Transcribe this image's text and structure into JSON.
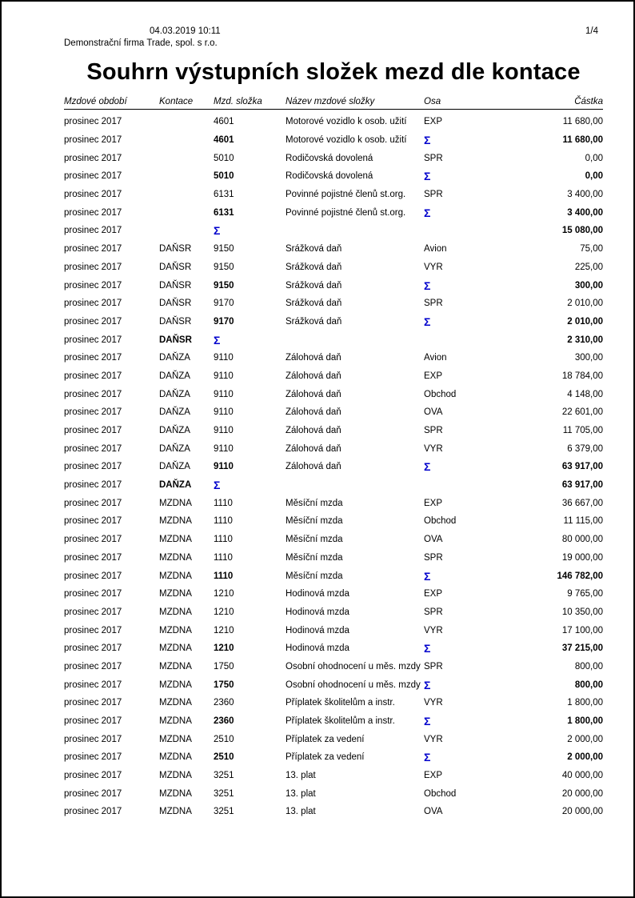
{
  "header": {
    "datetime": "04.03.2019 10:11",
    "company": "Demonstrační firma Trade, spol. s r.o.",
    "page_number": "1/4"
  },
  "title": "Souhrn výstupních složek mezd dle kontace",
  "colors": {
    "text": "#000000",
    "sigma": "#0000cc",
    "page_border": "#000000",
    "background": "#ffffff"
  },
  "table": {
    "sigma_symbol": "Σ",
    "columns": [
      "Mzdové období",
      "Kontace",
      "Mzd. složka",
      "Název mzdové složky",
      "Osa",
      "Částka"
    ],
    "rows": [
      {
        "period": "prosinec 2017",
        "kontace": "",
        "code": "4601",
        "name": "Motorové vozidlo k osob. užití",
        "osa": "EXP",
        "amount": "11 680,00",
        "bold": []
      },
      {
        "period": "prosinec 2017",
        "kontace": "",
        "code": "4601",
        "name": "Motorové vozidlo k osob. užití",
        "osa": "Σ",
        "amount": "11 680,00",
        "bold": [
          "code",
          "amount"
        ]
      },
      {
        "period": "prosinec 2017",
        "kontace": "",
        "code": "5010",
        "name": "Rodičovská dovolená",
        "osa": "SPR",
        "amount": "0,00",
        "bold": []
      },
      {
        "period": "prosinec 2017",
        "kontace": "",
        "code": "5010",
        "name": "Rodičovská dovolená",
        "osa": "Σ",
        "amount": "0,00",
        "bold": [
          "code",
          "amount"
        ]
      },
      {
        "period": "prosinec 2017",
        "kontace": "",
        "code": "6131",
        "name": "Povinné pojistné členů st.org.",
        "osa": "SPR",
        "amount": "3 400,00",
        "bold": []
      },
      {
        "period": "prosinec 2017",
        "kontace": "",
        "code": "6131",
        "name": "Povinné pojistné členů st.org.",
        "osa": "Σ",
        "amount": "3 400,00",
        "bold": [
          "code",
          "amount"
        ]
      },
      {
        "period": "prosinec 2017",
        "kontace": "",
        "code": "Σ",
        "name": "",
        "osa": "",
        "amount": "15 080,00",
        "bold": [
          "kontace",
          "amount"
        ]
      },
      {
        "period": "prosinec 2017",
        "kontace": "DAŇSR",
        "code": "9150",
        "name": "Srážková daň",
        "osa": "Avion",
        "amount": "75,00",
        "bold": []
      },
      {
        "period": "prosinec 2017",
        "kontace": "DAŇSR",
        "code": "9150",
        "name": "Srážková daň",
        "osa": "VYR",
        "amount": "225,00",
        "bold": []
      },
      {
        "period": "prosinec 2017",
        "kontace": "DAŇSR",
        "code": "9150",
        "name": "Srážková daň",
        "osa": "Σ",
        "amount": "300,00",
        "bold": [
          "code",
          "amount"
        ]
      },
      {
        "period": "prosinec 2017",
        "kontace": "DAŇSR",
        "code": "9170",
        "name": "Srážková daň",
        "osa": "SPR",
        "amount": "2 010,00",
        "bold": []
      },
      {
        "period": "prosinec 2017",
        "kontace": "DAŇSR",
        "code": "9170",
        "name": "Srážková daň",
        "osa": "Σ",
        "amount": "2 010,00",
        "bold": [
          "code",
          "amount"
        ]
      },
      {
        "period": "prosinec 2017",
        "kontace": "DAŇSR",
        "code": "Σ",
        "name": "",
        "osa": "",
        "amount": "2 310,00",
        "bold": [
          "kontace",
          "amount"
        ]
      },
      {
        "period": "prosinec 2017",
        "kontace": "DAŇZA",
        "code": "9110",
        "name": "Zálohová daň",
        "osa": "Avion",
        "amount": "300,00",
        "bold": []
      },
      {
        "period": "prosinec 2017",
        "kontace": "DAŇZA",
        "code": "9110",
        "name": "Zálohová daň",
        "osa": "EXP",
        "amount": "18 784,00",
        "bold": []
      },
      {
        "period": "prosinec 2017",
        "kontace": "DAŇZA",
        "code": "9110",
        "name": "Zálohová daň",
        "osa": "Obchod",
        "amount": "4 148,00",
        "bold": []
      },
      {
        "period": "prosinec 2017",
        "kontace": "DAŇZA",
        "code": "9110",
        "name": "Zálohová daň",
        "osa": "OVA",
        "amount": "22 601,00",
        "bold": []
      },
      {
        "period": "prosinec 2017",
        "kontace": "DAŇZA",
        "code": "9110",
        "name": "Zálohová daň",
        "osa": "SPR",
        "amount": "11 705,00",
        "bold": []
      },
      {
        "period": "prosinec 2017",
        "kontace": "DAŇZA",
        "code": "9110",
        "name": "Zálohová daň",
        "osa": "VYR",
        "amount": "6 379,00",
        "bold": []
      },
      {
        "period": "prosinec 2017",
        "kontace": "DAŇZA",
        "code": "9110",
        "name": "Zálohová daň",
        "osa": "Σ",
        "amount": "63 917,00",
        "bold": [
          "code",
          "amount"
        ]
      },
      {
        "period": "prosinec 2017",
        "kontace": "DAŇZA",
        "code": "Σ",
        "name": "",
        "osa": "",
        "amount": "63 917,00",
        "bold": [
          "kontace",
          "amount"
        ]
      },
      {
        "period": "prosinec 2017",
        "kontace": "MZDNA",
        "code": "1110",
        "name": "Měsíční mzda",
        "osa": "EXP",
        "amount": "36 667,00",
        "bold": []
      },
      {
        "period": "prosinec 2017",
        "kontace": "MZDNA",
        "code": "1110",
        "name": "Měsíční mzda",
        "osa": "Obchod",
        "amount": "11 115,00",
        "bold": []
      },
      {
        "period": "prosinec 2017",
        "kontace": "MZDNA",
        "code": "1110",
        "name": "Měsíční mzda",
        "osa": "OVA",
        "amount": "80 000,00",
        "bold": []
      },
      {
        "period": "prosinec 2017",
        "kontace": "MZDNA",
        "code": "1110",
        "name": "Měsíční mzda",
        "osa": "SPR",
        "amount": "19 000,00",
        "bold": []
      },
      {
        "period": "prosinec 2017",
        "kontace": "MZDNA",
        "code": "1110",
        "name": "Měsíční mzda",
        "osa": "Σ",
        "amount": "146 782,00",
        "bold": [
          "code",
          "amount"
        ]
      },
      {
        "period": "prosinec 2017",
        "kontace": "MZDNA",
        "code": "1210",
        "name": "Hodinová mzda",
        "osa": "EXP",
        "amount": "9 765,00",
        "bold": []
      },
      {
        "period": "prosinec 2017",
        "kontace": "MZDNA",
        "code": "1210",
        "name": "Hodinová mzda",
        "osa": "SPR",
        "amount": "10 350,00",
        "bold": []
      },
      {
        "period": "prosinec 2017",
        "kontace": "MZDNA",
        "code": "1210",
        "name": "Hodinová mzda",
        "osa": "VYR",
        "amount": "17 100,00",
        "bold": []
      },
      {
        "period": "prosinec 2017",
        "kontace": "MZDNA",
        "code": "1210",
        "name": "Hodinová mzda",
        "osa": "Σ",
        "amount": "37 215,00",
        "bold": [
          "code",
          "amount"
        ]
      },
      {
        "period": "prosinec 2017",
        "kontace": "MZDNA",
        "code": "1750",
        "name": "Osobní ohodnocení u měs. mzdy",
        "osa": "SPR",
        "amount": "800,00",
        "bold": []
      },
      {
        "period": "prosinec 2017",
        "kontace": "MZDNA",
        "code": "1750",
        "name": "Osobní ohodnocení u měs. mzdy",
        "osa": "Σ",
        "amount": "800,00",
        "bold": [
          "code",
          "amount"
        ]
      },
      {
        "period": "prosinec 2017",
        "kontace": "MZDNA",
        "code": "2360",
        "name": "Příplatek školitelům a instr.",
        "osa": "VYR",
        "amount": "1 800,00",
        "bold": []
      },
      {
        "period": "prosinec 2017",
        "kontace": "MZDNA",
        "code": "2360",
        "name": "Příplatek školitelům a instr.",
        "osa": "Σ",
        "amount": "1 800,00",
        "bold": [
          "code",
          "amount"
        ]
      },
      {
        "period": "prosinec 2017",
        "kontace": "MZDNA",
        "code": "2510",
        "name": "Příplatek za vedení",
        "osa": "VYR",
        "amount": "2 000,00",
        "bold": []
      },
      {
        "period": "prosinec 2017",
        "kontace": "MZDNA",
        "code": "2510",
        "name": "Příplatek za vedení",
        "osa": "Σ",
        "amount": "2 000,00",
        "bold": [
          "code",
          "amount"
        ]
      },
      {
        "period": "prosinec 2017",
        "kontace": "MZDNA",
        "code": "3251",
        "name": "13. plat",
        "osa": "EXP",
        "amount": "40 000,00",
        "bold": []
      },
      {
        "period": "prosinec 2017",
        "kontace": "MZDNA",
        "code": "3251",
        "name": "13. plat",
        "osa": "Obchod",
        "amount": "20 000,00",
        "bold": []
      },
      {
        "period": "prosinec 2017",
        "kontace": "MZDNA",
        "code": "3251",
        "name": "13. plat",
        "osa": "OVA",
        "amount": "20 000,00",
        "bold": []
      }
    ]
  }
}
